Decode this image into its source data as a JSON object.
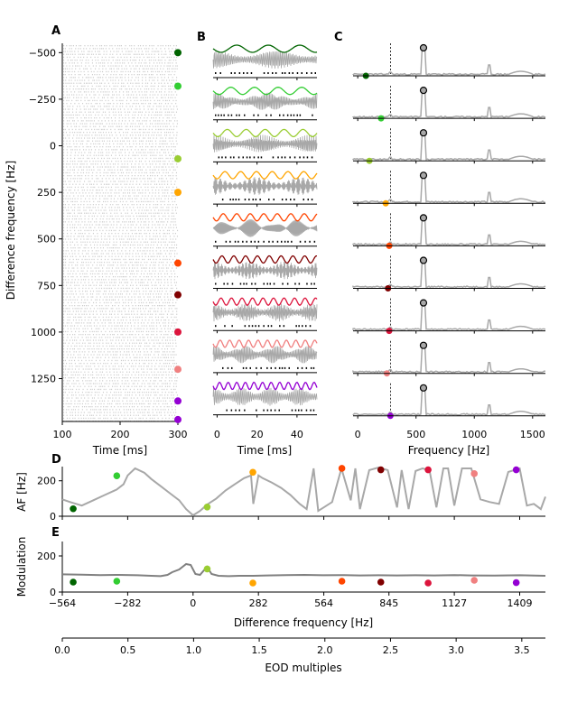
{
  "colors": {
    "trace_gray": "#a8a8a8",
    "light_gray": "#cccccc",
    "axis": "#000000",
    "markers": [
      "#006400",
      "#32cd32",
      "#9acd32",
      "#ffa500",
      "#ff4500",
      "#800000",
      "#dc143c",
      "#f08080",
      "#9400d3"
    ]
  },
  "chart_data": [
    {
      "panel": "A",
      "type": "scatter",
      "title": "A",
      "xlabel": "Time [ms]",
      "ylabel": "Difference frequency [Hz]",
      "xlim": [
        100,
        300
      ],
      "xticks": [
        "100",
        "200",
        "300"
      ],
      "ylim": [
        -550,
        1480
      ],
      "yticks": [
        "−500",
        "−250",
        "0",
        "250",
        "500",
        "750",
        "1000",
        "1250"
      ],
      "ytick_values": [
        -500,
        -250,
        0,
        250,
        500,
        750,
        1000,
        1250
      ],
      "description_rows": "spike rasters per difference frequency",
      "marker_df": [
        -500,
        -320,
        70,
        250,
        630,
        800,
        1000,
        1200,
        1370,
        1470
      ]
    },
    {
      "panel": "B",
      "type": "line",
      "title": "B",
      "xlabel": "Time [ms]",
      "ylabel": "",
      "xlim": [
        -2,
        50
      ],
      "xticks": [
        "0",
        "20",
        "40"
      ],
      "tick_values": [
        0,
        20,
        40
      ],
      "rows": 9
    },
    {
      "panel": "C",
      "type": "line",
      "title": "C",
      "xlabel": "Frequency [Hz]",
      "ylabel": "",
      "xlim": [
        -40,
        1610
      ],
      "xticks": [
        "0",
        "500",
        "1000",
        "1500"
      ],
      "tick_values": [
        0,
        500,
        1000,
        1500
      ],
      "dashed_line_x": 282,
      "peak_x": 564,
      "rows": 9
    },
    {
      "panel": "D",
      "type": "line",
      "title": "D",
      "xlabel": "",
      "ylabel": "AF [Hz]",
      "xlim": [
        -564,
        1520
      ],
      "ylim": [
        0,
        280
      ],
      "yticks": [
        "0",
        "200"
      ],
      "ytick_values": [
        0,
        200
      ],
      "x": [
        -564,
        -530,
        -480,
        -430,
        -380,
        -330,
        -300,
        -282,
        -250,
        -210,
        -180,
        -140,
        -100,
        -60,
        -30,
        0,
        30,
        60,
        100,
        140,
        180,
        220,
        250,
        260,
        282,
        300,
        340,
        380,
        420,
        460,
        490,
        520,
        540,
        564,
        600,
        640,
        680,
        700,
        720,
        760,
        800,
        840,
        880,
        900,
        930,
        960,
        990,
        1020,
        1050,
        1080,
        1100,
        1127,
        1160,
        1200,
        1240,
        1280,
        1320,
        1360,
        1409,
        1440,
        1470,
        1500,
        1520
      ],
      "y": [
        95,
        80,
        60,
        90,
        120,
        150,
        180,
        230,
        270,
        245,
        210,
        170,
        130,
        90,
        40,
        5,
        30,
        65,
        100,
        145,
        180,
        215,
        230,
        70,
        230,
        215,
        190,
        160,
        120,
        70,
        40,
        270,
        30,
        50,
        80,
        270,
        90,
        270,
        40,
        260,
        275,
        260,
        50,
        260,
        40,
        255,
        270,
        260,
        50,
        270,
        270,
        60,
        270,
        270,
        95,
        80,
        70,
        250,
        270,
        60,
        70,
        40,
        110
      ],
      "points": [
        {
          "x": -517,
          "y": 42
        },
        {
          "x": -329,
          "y": 228
        },
        {
          "x": 61,
          "y": 52
        },
        {
          "x": 258,
          "y": 248
        },
        {
          "x": 642,
          "y": 270
        },
        {
          "x": 810,
          "y": 262
        },
        {
          "x": 1014,
          "y": 262
        },
        {
          "x": 1213,
          "y": 240
        },
        {
          "x": 1394,
          "y": 262
        }
      ]
    },
    {
      "panel": "E",
      "type": "line",
      "title": "E",
      "xlabel": "Difference frequency [Hz]",
      "ylabel": "Modulation",
      "xlim": [
        -564,
        1520
      ],
      "ylim": [
        0,
        280
      ],
      "yticks": [
        "0",
        "200"
      ],
      "ytick_values": [
        0,
        200
      ],
      "xticks": [
        "−564",
        "−282",
        "0",
        "282",
        "564",
        "845",
        "1127",
        "1409"
      ],
      "xtick_values": [
        -564,
        -282,
        0,
        282,
        564,
        845,
        1127,
        1409
      ],
      "x": [
        -564,
        -480,
        -400,
        -320,
        -240,
        -180,
        -140,
        -110,
        -90,
        -60,
        -30,
        -10,
        10,
        30,
        60,
        80,
        110,
        150,
        200,
        260,
        320,
        400,
        480,
        560,
        640,
        720,
        800,
        880,
        960,
        1040,
        1127,
        1200,
        1300,
        1409,
        1520
      ],
      "y": [
        98,
        96,
        94,
        95,
        93,
        90,
        88,
        95,
        110,
        125,
        155,
        150,
        100,
        95,
        140,
        100,
        90,
        88,
        90,
        90,
        92,
        94,
        95,
        93,
        94,
        92,
        93,
        92,
        93,
        92,
        94,
        92,
        91,
        93,
        90
      ],
      "points": [
        {
          "x": -517,
          "y": 55
        },
        {
          "x": -329,
          "y": 60
        },
        {
          "x": 61,
          "y": 128
        },
        {
          "x": 258,
          "y": 50
        },
        {
          "x": 642,
          "y": 60
        },
        {
          "x": 810,
          "y": 55
        },
        {
          "x": 1014,
          "y": 50
        },
        {
          "x": 1213,
          "y": 65
        },
        {
          "x": 1394,
          "y": 52
        }
      ]
    },
    {
      "panel": "E-secondary",
      "type": "line",
      "xlabel": "EOD multiples",
      "xlim": [
        0,
        3.68
      ],
      "xticks": [
        "0.0",
        "0.5",
        "1.0",
        "1.5",
        "2.0",
        "2.5",
        "3.0",
        "3.5"
      ],
      "xtick_values": [
        0,
        0.5,
        1.0,
        1.5,
        2.0,
        2.5,
        3.0,
        3.5
      ]
    }
  ]
}
